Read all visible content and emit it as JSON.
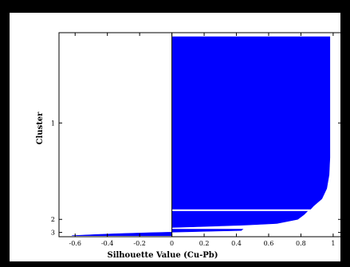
{
  "chart_data": {
    "type": "silhouette",
    "xlabel": "Silhouette Value (Cu-Pb)",
    "ylabel": "Cluster",
    "xlim": [
      -0.7,
      1.05
    ],
    "xticks": [
      "-0.6",
      "-0.4",
      "-0.2",
      "0",
      "0.2",
      "0.4",
      "0.6",
      "0.8",
      "1"
    ],
    "grid": false,
    "bar_color": "#0000ff",
    "clusters": [
      {
        "label": "1",
        "profile": [
          [
            0.0,
            0.98
          ],
          [
            0.3,
            0.98
          ],
          [
            0.5,
            0.98
          ],
          [
            0.7,
            0.98
          ],
          [
            0.8,
            0.975
          ],
          [
            0.88,
            0.96
          ],
          [
            0.94,
            0.93
          ],
          [
            0.98,
            0.88
          ],
          [
            1.0,
            0.86
          ]
        ]
      },
      {
        "label": "2",
        "profile": [
          [
            0.0,
            0.84
          ],
          [
            0.2,
            0.82
          ],
          [
            0.5,
            0.78
          ],
          [
            0.75,
            0.65
          ],
          [
            0.85,
            0.45
          ],
          [
            0.92,
            0.25
          ],
          [
            1.0,
            0.0
          ]
        ]
      },
      {
        "label": "3",
        "profile": [
          [
            0.0,
            0.44
          ],
          [
            0.2,
            0.43
          ],
          [
            0.4,
            0.1
          ],
          [
            0.55,
            -0.15
          ],
          [
            0.7,
            -0.35
          ],
          [
            0.85,
            -0.5
          ],
          [
            1.0,
            -0.62
          ]
        ]
      }
    ]
  }
}
